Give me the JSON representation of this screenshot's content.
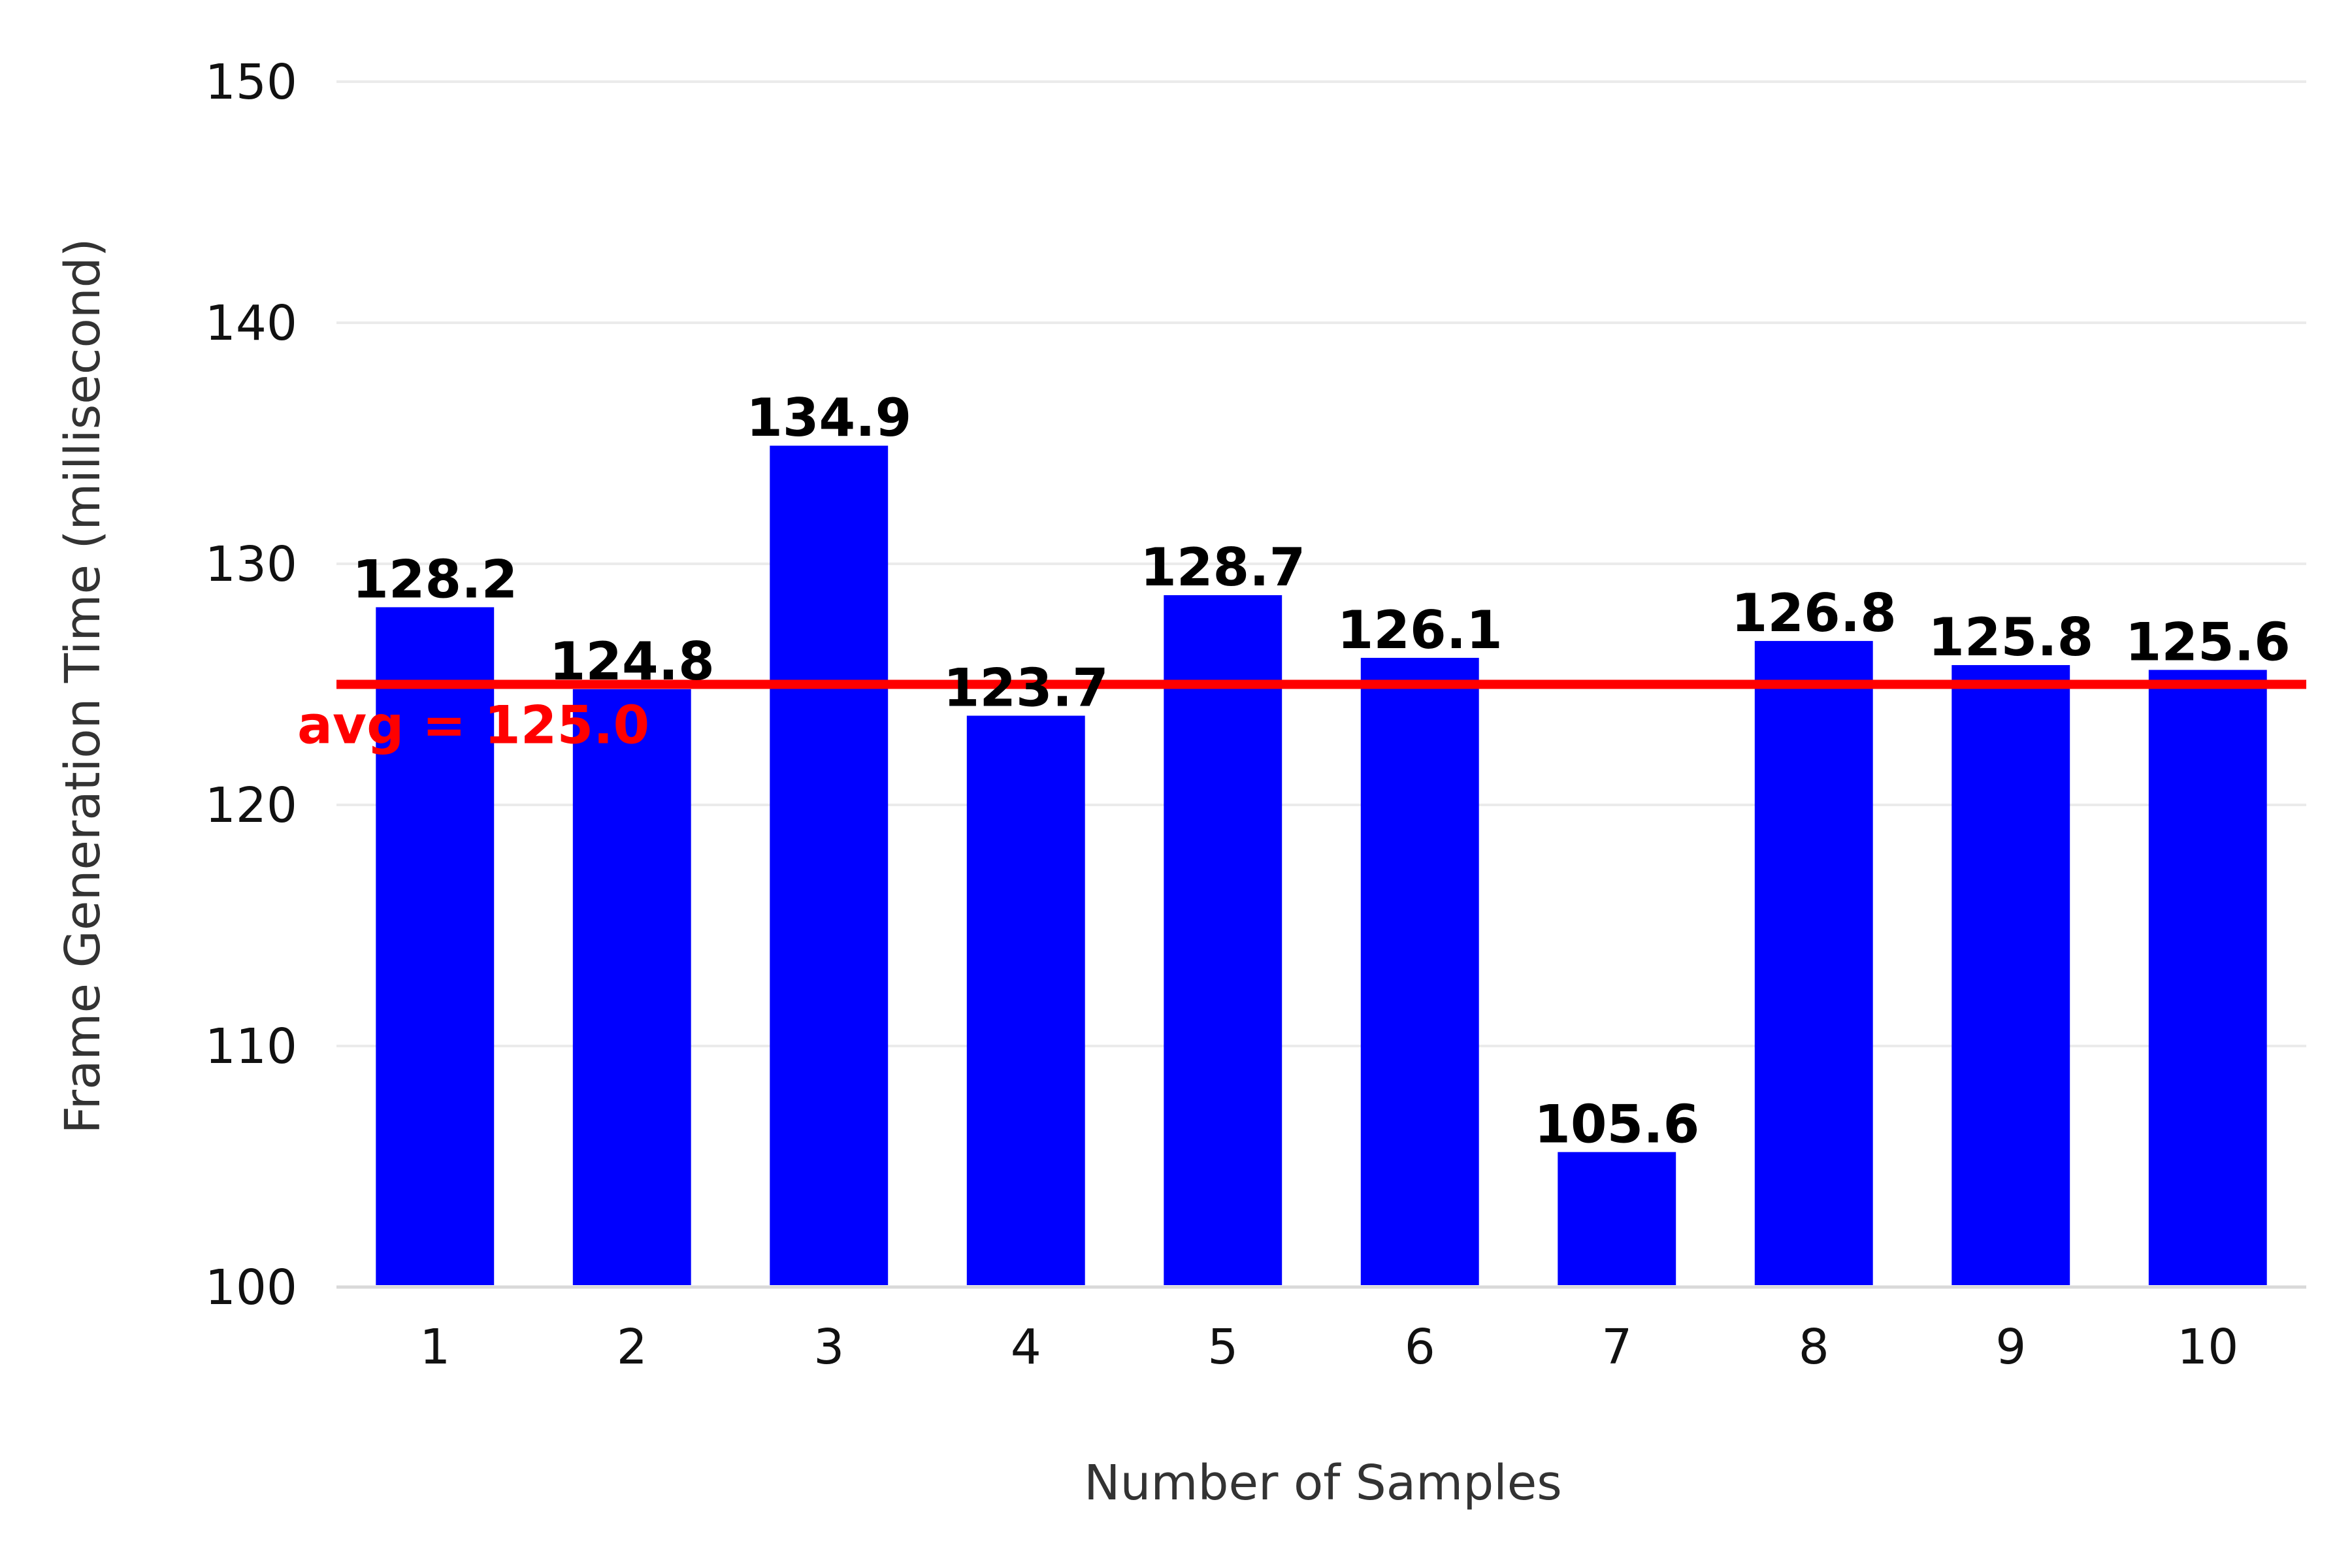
{
  "chart_data": {
    "type": "bar",
    "title": "",
    "xlabel": "Number of Samples",
    "ylabel": "Frame Generation Time (millisecond)",
    "categories": [
      "1",
      "2",
      "3",
      "4",
      "5",
      "6",
      "7",
      "8",
      "9",
      "10"
    ],
    "values": [
      128.2,
      124.8,
      134.9,
      123.7,
      128.7,
      126.1,
      105.6,
      126.8,
      125.8,
      125.6
    ],
    "data_labels": [
      "128.2",
      "124.8",
      "134.9",
      "123.7",
      "128.7",
      "126.1",
      "105.6",
      "126.8",
      "125.8",
      "125.6"
    ],
    "ylim": [
      100,
      150
    ],
    "yticks": [
      100,
      110,
      120,
      130,
      140,
      150
    ],
    "ytick_labels": [
      "100",
      "110",
      "120",
      "130",
      "140",
      "150"
    ],
    "grid": true,
    "reference_line": {
      "value": 125.0,
      "label": "avg = 125.0",
      "color": "#ff0000"
    },
    "bar_color": "#0000ff",
    "grid_color": "#ebebeb"
  }
}
